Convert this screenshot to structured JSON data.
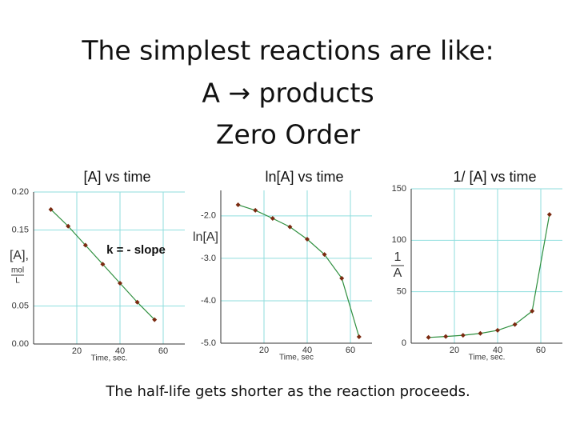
{
  "title_lines": [
    "The simplest reactions are like:",
    "A → products",
    "Zero Order"
  ],
  "caption": "The half-life gets shorter as the reaction proceeds.",
  "chart_data": [
    {
      "type": "line",
      "title": "[A]  vs time",
      "x_label": "Time, sec.",
      "y_label": "[A],",
      "y_unit_top": "mol",
      "y_unit_bottom": "L",
      "annotation": "k = - slope",
      "x": [
        8,
        16,
        24,
        32,
        40,
        48,
        56
      ],
      "series": [
        {
          "values": [
            0.177,
            0.155,
            0.13,
            0.105,
            0.08,
            0.055,
            0.032
          ],
          "color": "#7a2a10",
          "line_color": "#2f8f3f"
        }
      ],
      "xlim": [
        0,
        70
      ],
      "xticks": [
        20,
        40,
        60
      ],
      "ylim": [
        0,
        0.2
      ],
      "yticks": [
        {
          "value": 0,
          "label": "0.00"
        },
        {
          "value": 0.05,
          "label": "0.05"
        },
        {
          "value": 0.15,
          "label": "0.15"
        },
        {
          "value": 0.2,
          "label": "0.20"
        }
      ],
      "grid": true
    },
    {
      "type": "line",
      "title": "ln[A] vs time",
      "x_label": "Time, sec",
      "y_label": "ln[A]",
      "x": [
        8,
        16,
        24,
        32,
        40,
        48,
        56,
        64
      ],
      "series": [
        {
          "values": [
            -1.74,
            -1.87,
            -2.06,
            -2.26,
            -2.55,
            -2.91,
            -3.47,
            -4.85
          ],
          "color": "#7a2a10",
          "line_color": "#2f8f3f"
        }
      ],
      "xlim": [
        0,
        70
      ],
      "xticks": [
        20,
        40,
        60
      ],
      "ylim": [
        -5,
        -1.4
      ],
      "yticks": [
        {
          "value": -2,
          "label": "-2.0"
        },
        {
          "value": -3,
          "label": "-3.0"
        },
        {
          "value": -4,
          "label": "-4.0"
        },
        {
          "value": -5,
          "label": "-5.0"
        }
      ],
      "grid": true
    },
    {
      "type": "line",
      "title": "1/ [A] vs time",
      "x_label": "Time, sec.",
      "y_label_top": "1",
      "y_label_bottom": "A",
      "x": [
        8,
        16,
        24,
        32,
        40,
        48,
        56,
        64
      ],
      "series": [
        {
          "values": [
            5.6,
            6.5,
            7.7,
            9.5,
            12.5,
            18.2,
            31.2,
            125
          ],
          "color": "#7a2a10",
          "line_color": "#2f8f3f"
        }
      ],
      "xlim": [
        0,
        70
      ],
      "xticks": [
        20,
        40,
        60
      ],
      "ylim": [
        0,
        150
      ],
      "yticks": [
        0,
        50,
        100,
        150
      ],
      "grid": true
    }
  ]
}
